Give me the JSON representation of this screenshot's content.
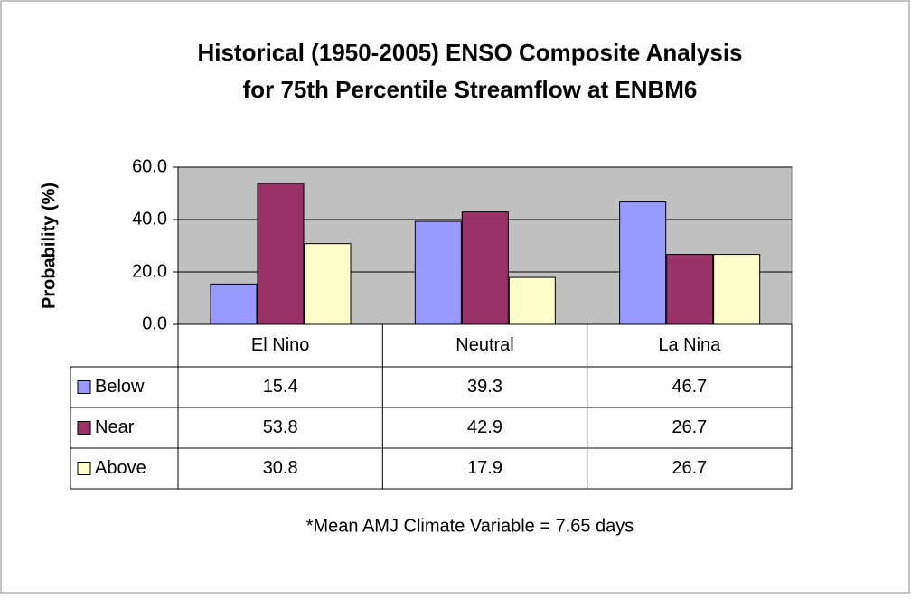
{
  "chart_data": {
    "type": "bar",
    "title": [
      "Historical (1950-2005) ENSO Composite Analysis",
      "for 75th Percentile Streamflow at ENBM6"
    ],
    "y_label": "Probability (%)",
    "categories": [
      "El Nino",
      "Neutral",
      "La Nina"
    ],
    "series": [
      {
        "name": "Below",
        "color": "#9999ff",
        "values": [
          15.4,
          39.3,
          46.7
        ]
      },
      {
        "name": "Near",
        "color": "#993366",
        "values": [
          53.8,
          42.9,
          26.7
        ]
      },
      {
        "name": "Above",
        "color": "#ffffcc",
        "values": [
          30.8,
          17.9,
          26.7
        ]
      }
    ],
    "ylim": [
      0,
      60
    ],
    "yticks": [
      {
        "value": 0,
        "label": "0.0"
      },
      {
        "value": 20,
        "label": "20.0"
      },
      {
        "value": 40,
        "label": "40.0"
      },
      {
        "value": 60,
        "label": "60.0"
      }
    ],
    "grid": true,
    "note": "*Mean AMJ Climate Variable = 7.65 days"
  }
}
